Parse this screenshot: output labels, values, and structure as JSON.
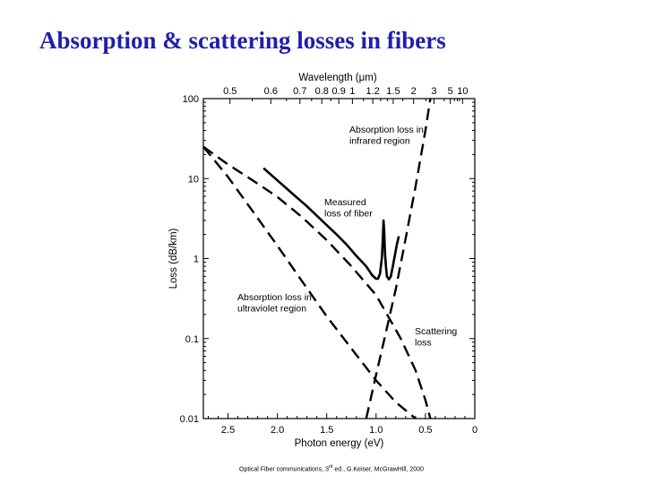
{
  "slide": {
    "title": "Absorption & scattering losses in fibers",
    "source": "Optical Fiber communications, 3",
    "source_sup": "rd",
    "source_rest": " ed., G.Keiser, McGrawHill, 2000"
  },
  "chart_data": {
    "type": "line",
    "xlabel": "Photon energy (eV)",
    "x2label": "Wavelength (μm)",
    "ylabel": "Loss (dB/km)",
    "y_scale": "log",
    "xlim": [
      2.75,
      0
    ],
    "ylim": [
      0.01,
      100
    ],
    "x_ticks": [
      {
        "value": 2.5,
        "label": "2.5"
      },
      {
        "value": 2.0,
        "label": "2.0"
      },
      {
        "value": 1.5,
        "label": "1.5"
      },
      {
        "value": 1.0,
        "label": "1.0"
      },
      {
        "value": 0.5,
        "label": "0.5"
      },
      {
        "value": 0,
        "label": "0"
      }
    ],
    "y_ticks": [
      {
        "value": 100,
        "label": "100"
      },
      {
        "value": 10,
        "label": "10"
      },
      {
        "value": 1,
        "label": "1"
      },
      {
        "value": 0.1,
        "label": "0.1"
      },
      {
        "value": 0.01,
        "label": "0.01"
      }
    ],
    "wavelength_ticks": [
      {
        "value": 0.5,
        "label": "0.5"
      },
      {
        "value": 0.6,
        "label": "0.6"
      },
      {
        "value": 0.7,
        "label": "0.7"
      },
      {
        "value": 0.8,
        "label": "0.8"
      },
      {
        "value": 0.9,
        "label": "0.9"
      },
      {
        "value": 1,
        "label": "1"
      },
      {
        "value": 1.2,
        "label": "1.2"
      },
      {
        "value": 1.5,
        "label": "1.5"
      },
      {
        "value": 2,
        "label": "2"
      },
      {
        "value": 3,
        "label": "3"
      },
      {
        "value": 5,
        "label": "5"
      },
      {
        "value": 10,
        "label": "10"
      }
    ],
    "series": [
      {
        "name": "Measured loss of fiber",
        "style": "solid",
        "points": [
          [
            2.14,
            13.5
          ],
          [
            2.0,
            9.5
          ],
          [
            1.85,
            6.5
          ],
          [
            1.7,
            4.5
          ],
          [
            1.55,
            3.0
          ],
          [
            1.4,
            2.0
          ],
          [
            1.3,
            1.5
          ],
          [
            1.2,
            1.08
          ],
          [
            1.1,
            0.8
          ],
          [
            1.04,
            0.62
          ],
          [
            1.0,
            0.56
          ],
          [
            0.98,
            0.56
          ],
          [
            0.96,
            0.65
          ],
          [
            0.94,
            1.05
          ],
          [
            0.93,
            2.0
          ],
          [
            0.925,
            3.0
          ],
          [
            0.918,
            2.2
          ],
          [
            0.91,
            1.2
          ],
          [
            0.9,
            0.8
          ],
          [
            0.89,
            0.6
          ],
          [
            0.87,
            0.55
          ],
          [
            0.85,
            0.6
          ],
          [
            0.83,
            0.8
          ],
          [
            0.81,
            1.1
          ],
          [
            0.79,
            1.5
          ],
          [
            0.77,
            1.9
          ]
        ]
      },
      {
        "name": "Scattering loss",
        "style": "dashed",
        "points": [
          [
            2.75,
            25.0
          ],
          [
            2.5,
            15.0
          ],
          [
            2.25,
            9.5
          ],
          [
            2.0,
            5.9
          ],
          [
            1.75,
            3.3
          ],
          [
            1.5,
            1.7
          ],
          [
            1.25,
            0.8
          ],
          [
            1.0,
            0.35
          ],
          [
            0.75,
            0.1
          ],
          [
            0.6,
            0.04
          ],
          [
            0.5,
            0.017
          ],
          [
            0.45,
            0.01
          ]
        ]
      },
      {
        "name": "Absorption loss in ultraviolet region",
        "style": "dashed",
        "points": [
          [
            2.75,
            25.0
          ],
          [
            2.5,
            10.5
          ],
          [
            2.25,
            3.9
          ],
          [
            2.0,
            1.45
          ],
          [
            1.75,
            0.52
          ],
          [
            1.5,
            0.19
          ],
          [
            1.25,
            0.075
          ],
          [
            1.0,
            0.03
          ],
          [
            0.8,
            0.016
          ],
          [
            0.6,
            0.01
          ]
        ]
      },
      {
        "name": "Absorption loss in infrared region",
        "style": "dashed",
        "points": [
          [
            1.1,
            0.01
          ],
          [
            1.0,
            0.035
          ],
          [
            0.9,
            0.12
          ],
          [
            0.8,
            0.42
          ],
          [
            0.7,
            1.8
          ],
          [
            0.6,
            8.0
          ],
          [
            0.5,
            40.0
          ],
          [
            0.45,
            100.0
          ]
        ]
      }
    ],
    "annotations": [
      {
        "id": "ir",
        "lines": [
          "Absorption loss in",
          "infrared region"
        ]
      },
      {
        "id": "measured",
        "lines": [
          "Measured",
          "loss of fiber"
        ]
      },
      {
        "id": "uv",
        "lines": [
          "Absorption loss in",
          "ultraviolet region"
        ]
      },
      {
        "id": "scatter",
        "lines": [
          "Scattering",
          "loss"
        ]
      }
    ]
  }
}
